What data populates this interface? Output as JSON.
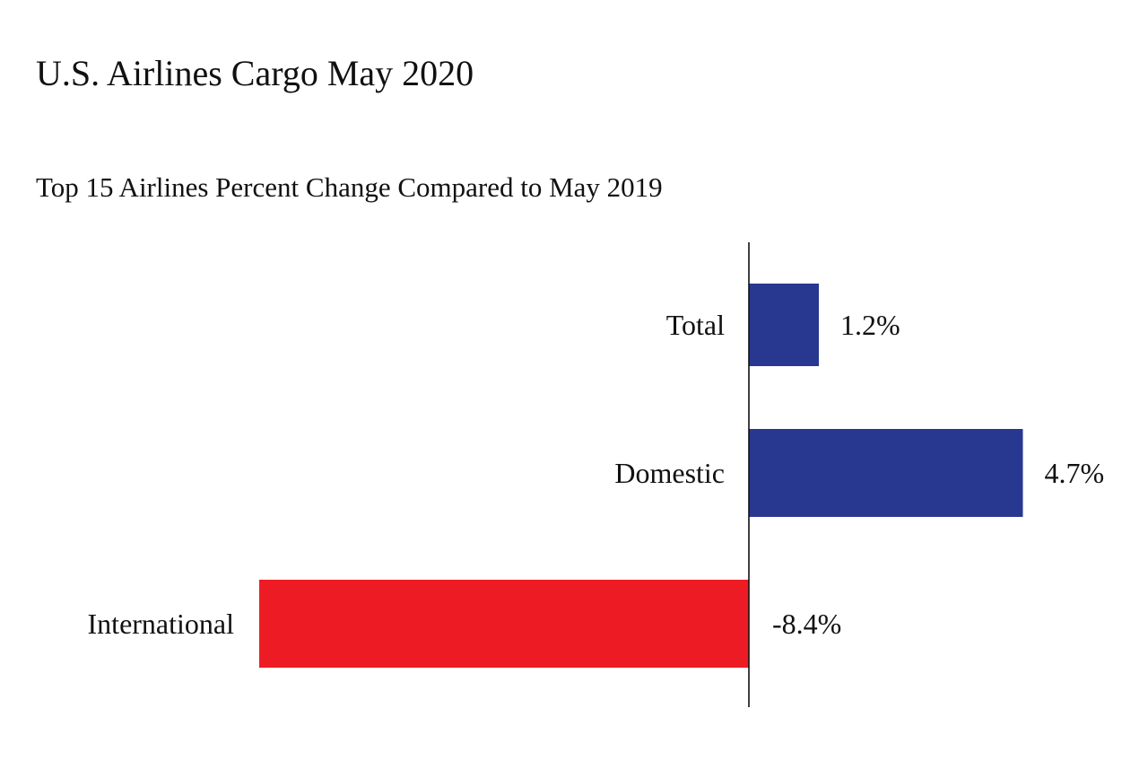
{
  "colors": {
    "positive": "#283891",
    "negative": "#ed1c24",
    "axis": "#111111"
  },
  "chart_data": {
    "type": "bar",
    "orientation": "horizontal",
    "title": "U.S. Airlines Cargo May 2020",
    "subtitle": "Top 15 Airlines Percent Change Compared to May 2019",
    "categories": [
      "Total",
      "Domestic",
      "International"
    ],
    "values": [
      1.2,
      4.7,
      -8.4
    ],
    "value_labels": [
      "1.2%",
      "4.7%",
      "-8.4%"
    ],
    "unit": "%",
    "xlim": [
      -9.5,
      5.5
    ],
    "grid": false,
    "legend": "none"
  }
}
